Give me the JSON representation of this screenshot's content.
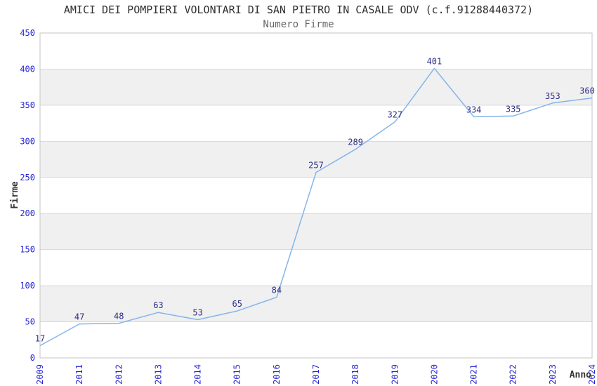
{
  "chart_data": {
    "type": "line",
    "title": "AMICI DEI POMPIERI VOLONTARI DI SAN PIETRO IN CASALE ODV (c.f.91288440372)",
    "subtitle": "Numero Firme",
    "xlabel": "Anno",
    "ylabel": "Firme",
    "categories": [
      "2009",
      "2011",
      "2012",
      "2013",
      "2014",
      "2015",
      "2016",
      "2017",
      "2018",
      "2019",
      "2020",
      "2021",
      "2022",
      "2023",
      "2024"
    ],
    "values": [
      17,
      47,
      48,
      63,
      53,
      65,
      84,
      257,
      289,
      327,
      401,
      334,
      335,
      353,
      360
    ],
    "ylim": [
      0,
      450
    ],
    "y_tick_step": 50,
    "y_ticks": [
      0,
      50,
      100,
      150,
      200,
      250,
      300,
      350,
      400,
      450
    ],
    "grid": true,
    "legend": "none",
    "colors": {
      "line": "#84b5ea",
      "data_label": "#2e2e85",
      "tick_label": "#2424d6",
      "title": "#303030",
      "subtitle": "#666666",
      "axis_title": "#333333",
      "grid_line": "#d8d8d8",
      "plot_border": "#c6c6c6",
      "band_fill": "#f0f0f0",
      "background": "#ffffff"
    }
  }
}
